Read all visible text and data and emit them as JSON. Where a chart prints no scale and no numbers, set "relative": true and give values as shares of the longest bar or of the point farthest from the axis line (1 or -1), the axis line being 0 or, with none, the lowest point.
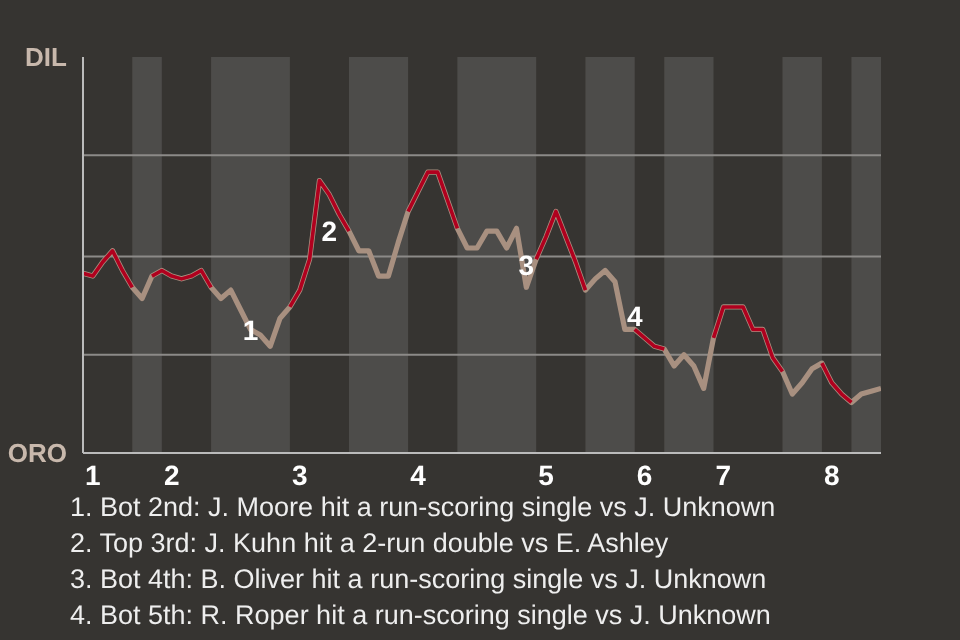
{
  "chart_data": {
    "type": "line",
    "relative": true,
    "marker": "none",
    "line_style": "solid",
    "ref_lines": [
      {
        "axis": "y",
        "value": 0.35,
        "color": "#8c8a88"
      },
      {
        "axis": "y",
        "value": 0.7,
        "color": "#8c8a88"
      },
      {
        "axis": "y",
        "value": 1.06,
        "color": "#8c8a88"
      }
    ],
    "categories": [
      null,
      "1",
      null,
      null,
      null,
      null,
      null,
      null,
      null,
      "2",
      null,
      null,
      null,
      null,
      null,
      null,
      null,
      null,
      null,
      null,
      null,
      null,
      "3",
      null,
      null,
      null,
      null,
      null,
      null,
      null,
      null,
      null,
      null,
      null,
      "4",
      null,
      null,
      null,
      null,
      null,
      null,
      null,
      null,
      null,
      null,
      null,
      null,
      "5",
      null,
      null,
      null,
      null,
      null,
      null,
      null,
      null,
      null,
      "6",
      null,
      null,
      null,
      null,
      null,
      null,
      null,
      "7",
      null,
      null,
      null,
      null,
      null,
      null,
      null,
      null,
      null,
      null,
      "8",
      null,
      null,
      null,
      null,
      null
    ],
    "series": [
      {
        "values": [
          0.64,
          0.63,
          0.68,
          0.72,
          0.65,
          0.59,
          0.55,
          0.63,
          0.65,
          0.63,
          0.62,
          0.63,
          0.65,
          0.59,
          0.55,
          0.58,
          0.51,
          0.44,
          0.42,
          0.38,
          0.48,
          0.52,
          0.58,
          0.69,
          0.97,
          0.92,
          0.85,
          0.79,
          0.72,
          0.72,
          0.63,
          0.63,
          0.75,
          0.86,
          0.93,
          1,
          1,
          0.9,
          0.8,
          0.73,
          0.73,
          0.79,
          0.79,
          0.73,
          0.8,
          0.59,
          0.69,
          0.77,
          0.86,
          0.77,
          0.68,
          0.58,
          0.62,
          0.65,
          0.61,
          0.44,
          0.44,
          0.41,
          0.38,
          0.37,
          0.31,
          0.35,
          0.31,
          0.23,
          0.41,
          0.52,
          0.52,
          0.52,
          0.44,
          0.44,
          0.34,
          0.29,
          0.21,
          0.25,
          0.3,
          0.32,
          0.25,
          0.21,
          0.18,
          0.21,
          0.22,
          0.23
        ],
        "color": "#a89080"
      },
      {
        "color": "#b0001e",
        "values": [
          0.64,
          0.63,
          0.68,
          0.72,
          0.65,
          0.59,
          null,
          0.63,
          0.65,
          0.63,
          0.62,
          0.63,
          0.65,
          0.59,
          null,
          null,
          null,
          null,
          null,
          null,
          null,
          0.52,
          0.58,
          0.69,
          0.97,
          0.92,
          0.85,
          0.79,
          null,
          null,
          null,
          null,
          null,
          0.86,
          0.93,
          1,
          1,
          0.9,
          0.8,
          null,
          null,
          null,
          null,
          null,
          null,
          null,
          0.69,
          0.77,
          0.86,
          0.77,
          0.68,
          0.58,
          null,
          null,
          null,
          null,
          0.44,
          0.41,
          0.38,
          0.37,
          null,
          null,
          null,
          null,
          0.41,
          0.52,
          0.52,
          0.52,
          0.44,
          0.44,
          0.34,
          0.29,
          null,
          null,
          null,
          0.32,
          0.25,
          0.21,
          0.18,
          null,
          null,
          null
        ]
      }
    ],
    "annotations": [
      "DIL",
      "ORO",
      "1",
      "2",
      "3",
      "4",
      "1. Bot 2nd: J. Moore hit a run-scoring single vs J. Unknown",
      "2. Top 3rd: J. Kuhn hit a 2-run double vs E. Ashley",
      "3. Bot 4th: B. Oliver hit a run-scoring single vs J. Unknown",
      "4. Bot 5th: R. Roper hit a run-scoring single vs J. Unknown"
    ]
  }
}
